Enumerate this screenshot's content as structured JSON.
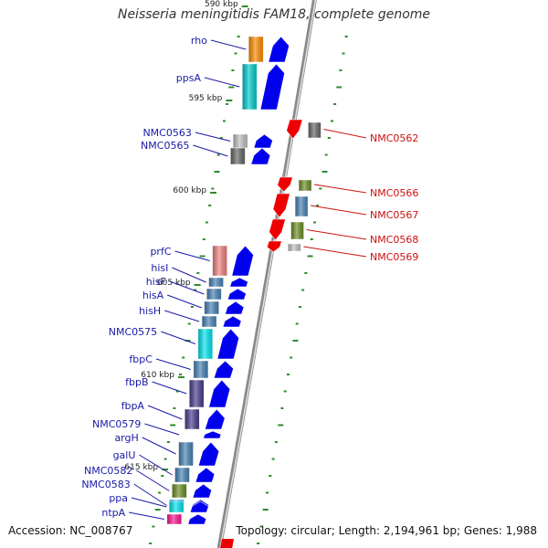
{
  "title": "Neisseria meningitidis FAM18, complete genome",
  "footer": {
    "accession": "Accession: NC_008767",
    "summary": "Topology: circular; Length: 2,194,961 bp; Genes: 1,988"
  },
  "colors": {
    "backbone": "#9a9a9a",
    "forward_gene": "#0000ee",
    "reverse_gene": "#ee0000",
    "forward_label": "#1a1aa6",
    "reverse_label": "#cc1111",
    "tick": "#2e8b2e"
  },
  "scale_labels": [
    "590 kbp",
    "595 kbp",
    "600 kbp",
    "605 kbp",
    "610 kbp",
    "615 kbp"
  ],
  "forward_genes": [
    {
      "label": "rho",
      "arrow": "#0000ee",
      "cog": "#ff8c00"
    },
    {
      "label": "ppsA",
      "arrow": "#0000ee",
      "cog": "#00cccc"
    },
    {
      "label": "NMC0563",
      "arrow": "#0000ee",
      "cog": "#c0c0c0"
    },
    {
      "label": "NMC0565",
      "arrow": "#0000ee",
      "cog": "#666666"
    },
    {
      "label": "prfC",
      "arrow": "#0000ee",
      "cog": "#f08080"
    },
    {
      "label": "hisI",
      "arrow": "#0000ee",
      "cog": "#4682b4"
    },
    {
      "label": "hisF",
      "arrow": "#0000ee",
      "cog": "#4682b4"
    },
    {
      "label": "hisA",
      "arrow": "#0000ee",
      "cog": "#4682b4"
    },
    {
      "label": "hisH",
      "arrow": "#0000ee",
      "cog": "#4682b4"
    },
    {
      "label": "NMC0575",
      "arrow": "#0000ee",
      "cog": "#00e5ee"
    },
    {
      "label": "fbpC",
      "arrow": "#0000ee",
      "cog": "#4682b4"
    },
    {
      "label": "fbpB",
      "arrow": "#0000ee",
      "cog": "#483d8b"
    },
    {
      "label": "fbpA",
      "arrow": "#0000ee",
      "cog": "#483d8b"
    },
    {
      "label": "NMC0579",
      "arrow": "#0000ee",
      "cog": ""
    },
    {
      "label": "argH",
      "arrow": "#0000ee",
      "cog": "#4682b4"
    },
    {
      "label": "galU",
      "arrow": "#0000ee",
      "cog": "#4682b4"
    },
    {
      "label": "NMC0582",
      "arrow": "#0000ee",
      "cog": "#6b8e23"
    },
    {
      "label": "NMC0583",
      "arrow": "#0000ee",
      "cog": "#00bfff"
    },
    {
      "label": "ppa",
      "arrow": "#0000ee",
      "cog": "#00e5ee"
    },
    {
      "label": "ntpA",
      "arrow": "#0000ee",
      "cog": "#ff1493"
    }
  ],
  "reverse_genes": [
    {
      "label": "NMC0562",
      "arrow": "#ee0000",
      "cog": "#666666"
    },
    {
      "label": "NMC0566",
      "arrow": "#ee0000",
      "cog": "#6b8e23"
    },
    {
      "label": "NMC0567",
      "arrow": "#ee0000",
      "cog": "#4682b4"
    },
    {
      "label": "NMC0568",
      "arrow": "#ee0000",
      "cog": "#6b8e23"
    },
    {
      "label": "NMC0569",
      "arrow": "#ee0000",
      "cog": "#c0c0c0"
    }
  ]
}
